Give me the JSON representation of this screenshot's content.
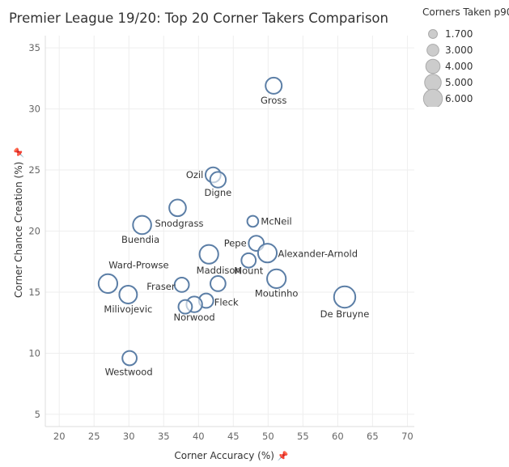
{
  "title": "Premier League 19/20: Top 20 Corner Takers Comparison",
  "legend": {
    "title": "Corners Taken p90",
    "entries": [
      "1.700",
      "3.000",
      "4.000",
      "5.000",
      "6.000"
    ],
    "entry_values": [
      1.7,
      3.0,
      4.0,
      5.0,
      6.0
    ]
  },
  "pin_icon": "pin-icon",
  "colors": {
    "marker": "#5b7ea6",
    "legend_marker": "#cccccc",
    "grid": "#eeeeee",
    "axis_text": "#666666",
    "label": "#333333"
  },
  "chart_data": {
    "type": "scatter",
    "title": "Premier League 19/20: Top 20 Corner Takers Comparison",
    "xlabel": "Corner Accuracy (%)",
    "ylabel": "Corner Chance Creation (%)",
    "xlim": [
      18,
      71
    ],
    "ylim": [
      4,
      36
    ],
    "xticks": [
      20,
      25,
      30,
      35,
      40,
      45,
      50,
      55,
      60,
      65,
      70
    ],
    "yticks": [
      5,
      10,
      15,
      20,
      25,
      30,
      35
    ],
    "size_legend_title": "Corners Taken p90",
    "grid": true,
    "legend_position": "top-right",
    "points": [
      {
        "name": "Gross",
        "x": 50.8,
        "y": 31.9,
        "size": 4.0
      },
      {
        "name": "Ozil",
        "x": 42.1,
        "y": 24.6,
        "size": 3.6
      },
      {
        "name": "Digne",
        "x": 42.8,
        "y": 24.2,
        "size": 3.8
      },
      {
        "name": "Snodgrass",
        "x": 37.0,
        "y": 21.9,
        "size": 4.2
      },
      {
        "name": "McNeil",
        "x": 47.8,
        "y": 20.8,
        "size": 2.0
      },
      {
        "name": "Buendia",
        "x": 31.9,
        "y": 20.5,
        "size": 4.8
      },
      {
        "name": "Pepe",
        "x": 48.3,
        "y": 19.0,
        "size": 3.6
      },
      {
        "name": "Alexander-Arnold",
        "x": 49.9,
        "y": 18.2,
        "size": 5.0
      },
      {
        "name": "Maddison",
        "x": 41.5,
        "y": 18.1,
        "size": 5.0
      },
      {
        "name": "Mount",
        "x": 47.2,
        "y": 17.6,
        "size": 3.3
      },
      {
        "name": "Moutinho",
        "x": 51.2,
        "y": 16.1,
        "size": 5.0
      },
      {
        "name": "Ward-Prowse",
        "x": 27.0,
        "y": 15.7,
        "size": 5.0
      },
      {
        "name": "Fraser",
        "x": 37.6,
        "y": 15.6,
        "size": 3.3
      },
      {
        "name": "Fraser",
        "x": 42.8,
        "y": 15.7,
        "size": 3.6
      },
      {
        "name": "Milivojevic",
        "x": 29.9,
        "y": 14.8,
        "size": 4.6
      },
      {
        "name": "De Bruyne",
        "x": 61.0,
        "y": 14.6,
        "size": 6.0
      },
      {
        "name": "Fleck",
        "x": 41.1,
        "y": 14.3,
        "size": 3.3
      },
      {
        "name": "Norwood",
        "x": 39.4,
        "y": 14.0,
        "size": 3.8
      },
      {
        "name": "Norwood",
        "x": 38.1,
        "y": 13.8,
        "size": 3.0
      },
      {
        "name": "Westwood",
        "x": 30.1,
        "y": 9.6,
        "size": 3.3
      }
    ],
    "labels": [
      {
        "text": "Gross",
        "x": 50.8,
        "y": 31.9
      },
      {
        "text": "Ozil",
        "x": 42.1,
        "y": 24.6
      },
      {
        "text": "Digne",
        "x": 42.8,
        "y": 24.2
      },
      {
        "text": "Snodgrass",
        "x": 37.0,
        "y": 21.9
      },
      {
        "text": "McNeil",
        "x": 47.8,
        "y": 20.8
      },
      {
        "text": "Buendia",
        "x": 31.9,
        "y": 20.5
      },
      {
        "text": "Pepe",
        "x": 48.3,
        "y": 19.0
      },
      {
        "text": "Alexander-Arnold",
        "x": 49.9,
        "y": 18.2
      },
      {
        "text": "Maddison",
        "x": 41.5,
        "y": 18.1
      },
      {
        "text": "Mount",
        "x": 47.2,
        "y": 17.6
      },
      {
        "text": "Moutinho",
        "x": 51.2,
        "y": 16.1
      },
      {
        "text": "Ward-Prowse",
        "x": 27.0,
        "y": 15.7
      },
      {
        "text": "Fraser",
        "x": 37.6,
        "y": 15.6
      },
      {
        "text": "Milivojevic",
        "x": 29.9,
        "y": 14.8
      },
      {
        "text": "De Bruyne",
        "x": 61.0,
        "y": 14.6
      },
      {
        "text": "Fleck",
        "x": 41.1,
        "y": 14.3
      },
      {
        "text": "Norwood",
        "x": 39.4,
        "y": 14.0
      },
      {
        "text": "Westwood",
        "x": 30.1,
        "y": 9.6
      }
    ]
  }
}
